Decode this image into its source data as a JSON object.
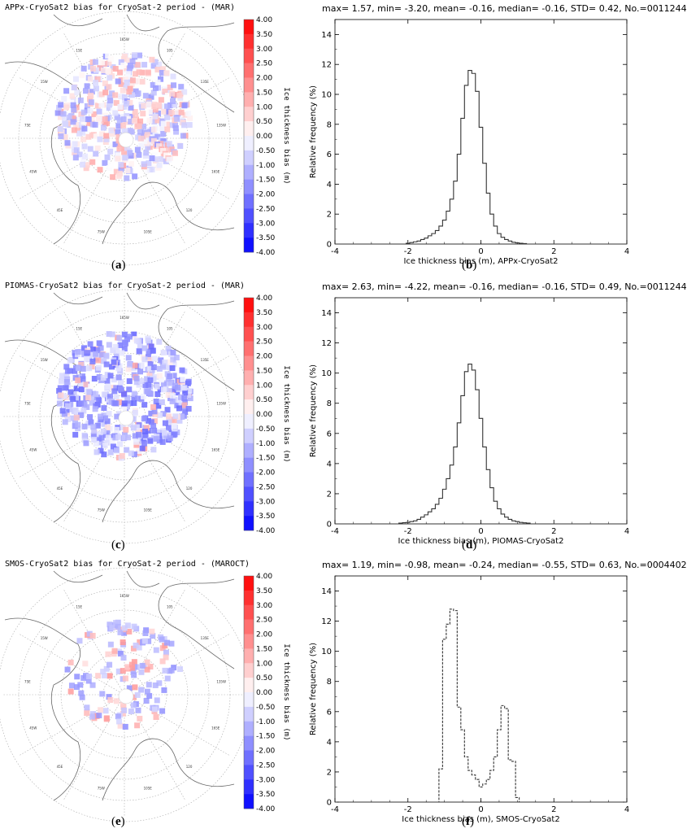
{
  "panels": [
    {
      "id": "a",
      "label": "a",
      "map_title": "APPx-CryoSat2 bias for CryoSat-2 period - (MAR)",
      "pattern": "mixed",
      "colorbar_label": "Ice thickness bias (m)"
    },
    {
      "id": "c",
      "label": "c",
      "map_title": "PIOMAS-CryoSat2 bias for CryoSat-2 period - (MAR)",
      "pattern": "mostly_negative",
      "colorbar_label": "Ice thickness bias (m)"
    },
    {
      "id": "e",
      "label": "e",
      "map_title": "SMOS-CryoSat2 bias for CryoSat-2 period - (MAROCT)",
      "pattern": "sparse",
      "colorbar_label": "Ice thickness bias (m)"
    }
  ],
  "colorbar_ticks": [
    "4.00",
    "3.50",
    "3.00",
    "2.50",
    "2.00",
    "1.50",
    "1.00",
    "0.50",
    "0.00",
    "-0.50",
    "-1.00",
    "-1.50",
    "-2.00",
    "-2.50",
    "-3.00",
    "-3.50",
    "-4.00"
  ],
  "map_labels": [
    "165W",
    "105",
    "135E",
    "135W",
    "165E",
    "120",
    "105E",
    "75W",
    "45E",
    "45W",
    "75E",
    "15W",
    "15E"
  ],
  "chart_data": [
    {
      "type": "histogram",
      "label": "b",
      "title": "max= 1.57, min= -3.20, mean= -0.16, median= -0.16, STD= 0.42, No.=0011244",
      "xlabel": "Ice thickness bias (m), APPx-CryoSat2",
      "ylabel": "Relative frequency (%)",
      "xlim": [
        -4,
        4
      ],
      "ylim": [
        0,
        15
      ],
      "xticks": [
        "-4",
        "-2",
        "0",
        "2",
        "4"
      ],
      "yticks": [
        "0",
        "2",
        "4",
        "6",
        "8",
        "10",
        "12",
        "14"
      ],
      "line_style": "solid",
      "bin_width": 0.1,
      "x": [
        -2.0,
        -1.9,
        -1.8,
        -1.7,
        -1.6,
        -1.5,
        -1.4,
        -1.3,
        -1.2,
        -1.1,
        -1.0,
        -0.9,
        -0.8,
        -0.7,
        -0.6,
        -0.5,
        -0.4,
        -0.3,
        -0.2,
        -0.1,
        0.0,
        0.1,
        0.2,
        0.3,
        0.4,
        0.5,
        0.6,
        0.7,
        0.8,
        0.9,
        1.0,
        1.1,
        1.2
      ],
      "values": [
        0.05,
        0.1,
        0.15,
        0.2,
        0.3,
        0.4,
        0.55,
        0.7,
        0.9,
        1.2,
        1.6,
        2.2,
        3.0,
        4.2,
        6.0,
        8.4,
        10.6,
        11.6,
        11.4,
        10.2,
        7.8,
        5.4,
        3.4,
        2.0,
        1.2,
        0.7,
        0.45,
        0.3,
        0.2,
        0.12,
        0.08,
        0.05,
        0.03
      ]
    },
    {
      "type": "histogram",
      "label": "d",
      "title": "max= 2.63, min= -4.22, mean= -0.16, median= -0.16, STD= 0.49, No.=0011244",
      "xlabel": "Ice thickness bias (m), PIOMAS-CryoSat2",
      "ylabel": "Relative frequency (%)",
      "xlim": [
        -4,
        4
      ],
      "ylim": [
        0,
        15
      ],
      "xticks": [
        "-4",
        "-2",
        "0",
        "2",
        "4"
      ],
      "yticks": [
        "0",
        "2",
        "4",
        "6",
        "8",
        "10",
        "12",
        "14"
      ],
      "line_style": "solid",
      "bin_width": 0.1,
      "x": [
        -2.2,
        -2.1,
        -2.0,
        -1.9,
        -1.8,
        -1.7,
        -1.6,
        -1.5,
        -1.4,
        -1.3,
        -1.2,
        -1.1,
        -1.0,
        -0.9,
        -0.8,
        -0.7,
        -0.6,
        -0.5,
        -0.4,
        -0.3,
        -0.2,
        -0.1,
        0.0,
        0.1,
        0.2,
        0.3,
        0.4,
        0.5,
        0.6,
        0.7,
        0.8,
        0.9,
        1.0,
        1.1,
        1.2,
        1.3
      ],
      "values": [
        0.05,
        0.08,
        0.1,
        0.15,
        0.2,
        0.3,
        0.45,
        0.6,
        0.8,
        1.0,
        1.3,
        1.7,
        2.3,
        3.0,
        3.9,
        5.1,
        6.7,
        8.5,
        10.1,
        10.6,
        10.2,
        8.9,
        7.0,
        5.1,
        3.6,
        2.4,
        1.5,
        1.0,
        0.65,
        0.45,
        0.3,
        0.2,
        0.15,
        0.1,
        0.07,
        0.05
      ]
    },
    {
      "type": "histogram",
      "label": "f",
      "title": "max= 1.19, min= -0.98, mean= -0.24, median= -0.55, STD= 0.63, No.=0004402",
      "xlabel": "Ice thickness bias (m), SMOS-CryoSat2",
      "ylabel": "Relative frequency (%)",
      "xlim": [
        -4,
        4
      ],
      "ylim": [
        0,
        15
      ],
      "xticks": [
        "-4",
        "-2",
        "0",
        "2",
        "4"
      ],
      "yticks": [
        "0",
        "2",
        "4",
        "6",
        "8",
        "10",
        "12",
        "14"
      ],
      "line_style": "dashed",
      "bin_width": 0.1,
      "x": [
        -1.1,
        -1.0,
        -0.9,
        -0.8,
        -0.7,
        -0.6,
        -0.5,
        -0.4,
        -0.3,
        -0.2,
        -0.1,
        0.0,
        0.1,
        0.2,
        0.3,
        0.4,
        0.5,
        0.6,
        0.7,
        0.8,
        0.9,
        1.0
      ],
      "values": [
        2.2,
        10.8,
        11.8,
        12.8,
        12.7,
        6.3,
        4.8,
        3.0,
        2.1,
        1.8,
        1.5,
        1.0,
        1.2,
        1.5,
        2.1,
        3.0,
        4.8,
        6.4,
        6.2,
        2.8,
        2.7,
        0.3
      ]
    }
  ]
}
